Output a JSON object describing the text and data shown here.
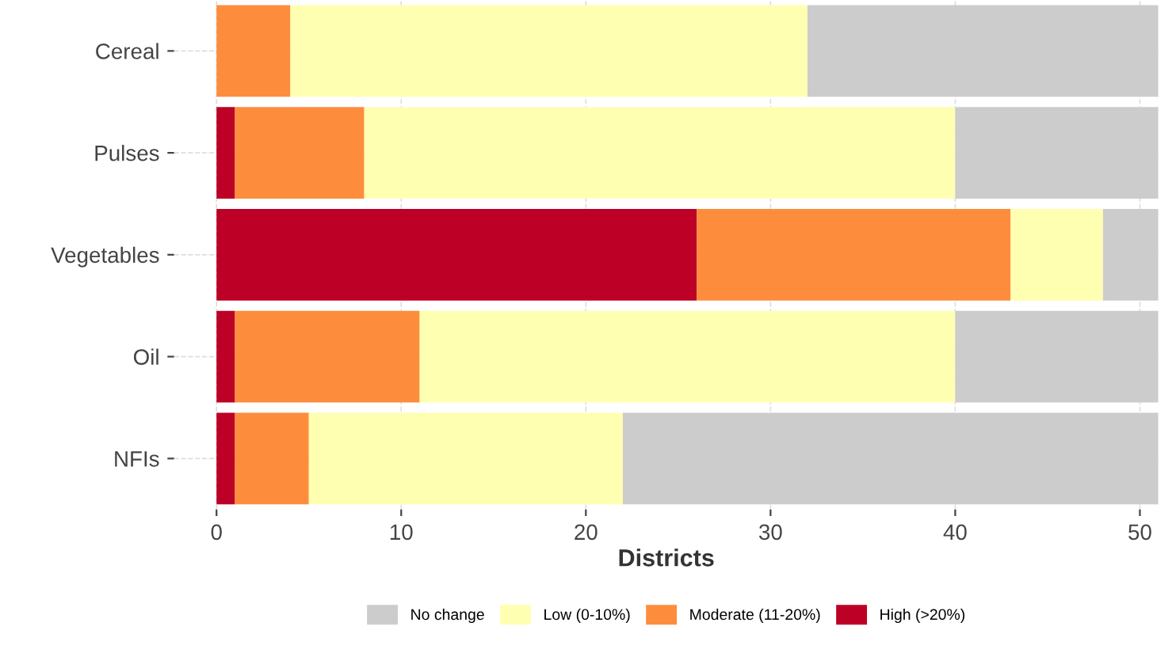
{
  "chart_data": {
    "type": "bar",
    "orientation": "horizontal",
    "stacked": true,
    "categories": [
      "Cereal",
      "Pulses",
      "Vegetables",
      "Oil",
      "NFIs"
    ],
    "series": [
      {
        "name": "High (>20%)",
        "color": "#bd0026",
        "values": [
          0,
          1,
          26,
          1,
          1
        ]
      },
      {
        "name": "Moderate (11-20%)",
        "color": "#fd8d3c",
        "values": [
          4,
          7,
          17,
          10,
          4
        ]
      },
      {
        "name": "Low (0-10%)",
        "color": "#ffffb2",
        "values": [
          28,
          32,
          5,
          29,
          17
        ]
      },
      {
        "name": "No change",
        "color": "#cccccc",
        "values": [
          19,
          11,
          3,
          11,
          29
        ]
      }
    ],
    "xlabel": "Districts",
    "xlim": [
      -2.3,
      51
    ],
    "xticks": [
      0,
      10,
      20,
      30,
      40,
      50
    ],
    "grid": true,
    "legend": "bottom"
  }
}
